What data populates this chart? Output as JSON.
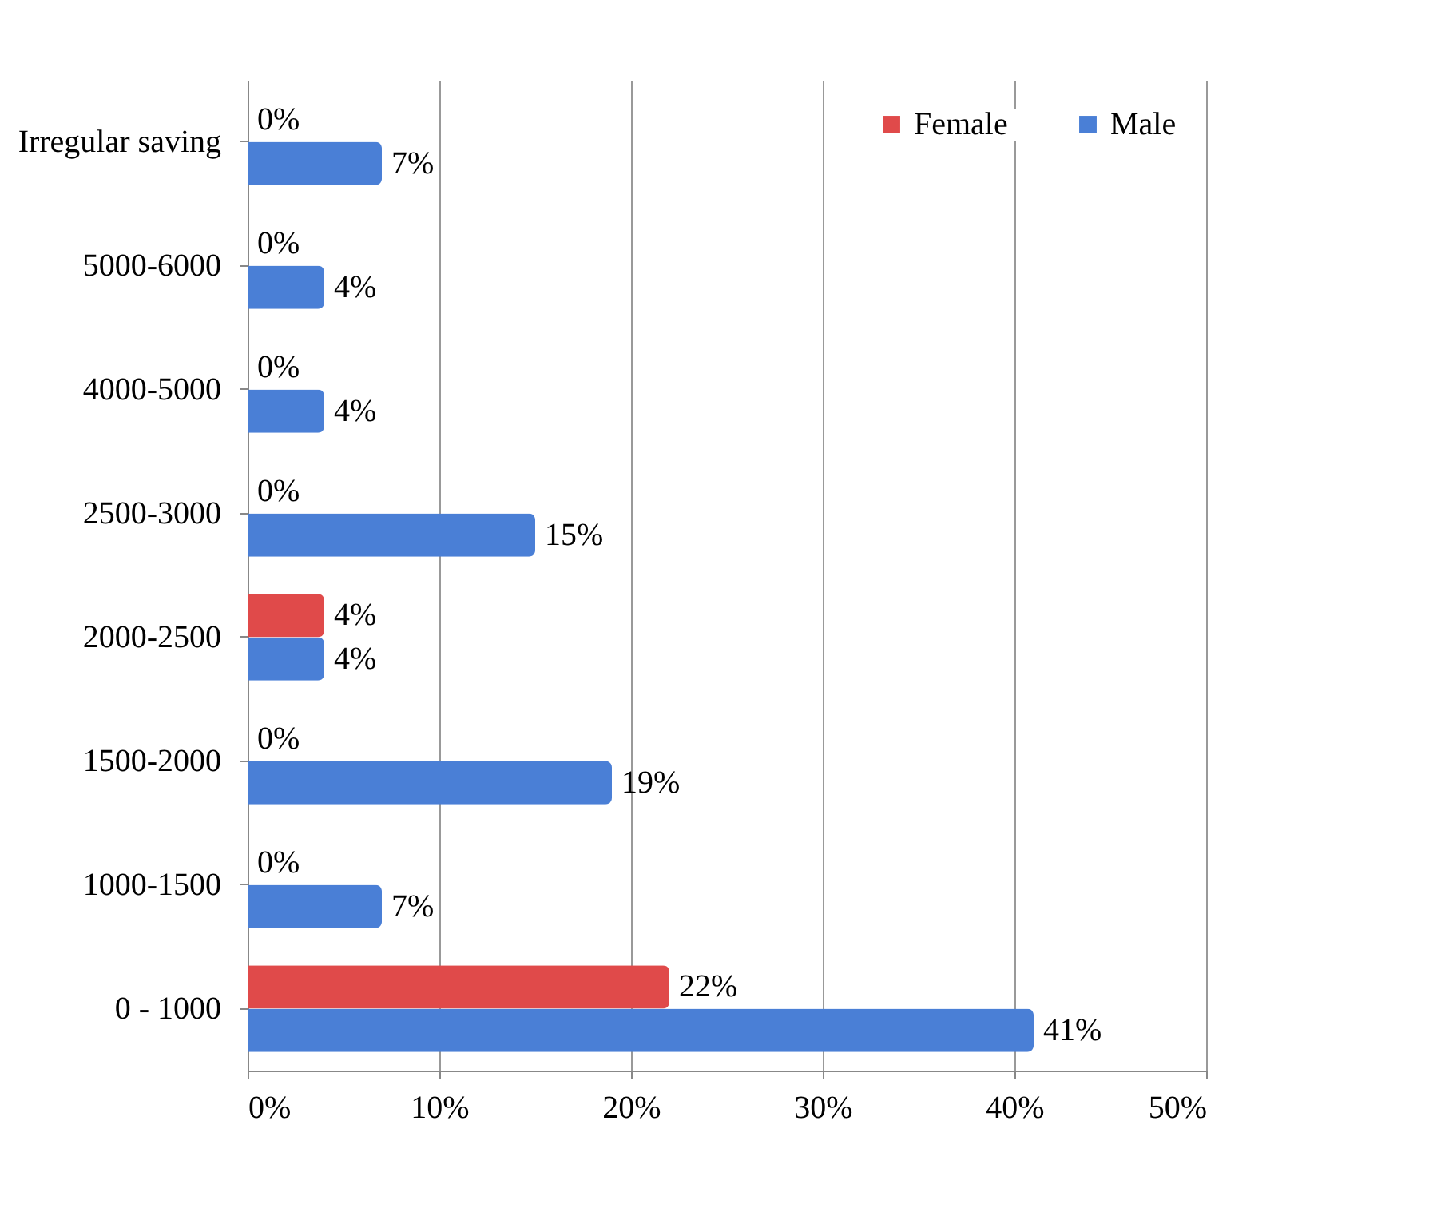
{
  "chart_data": {
    "type": "bar",
    "orientation": "horizontal",
    "categories": [
      "Irregular saving",
      "5000-6000",
      "4000-5000",
      "2500-3000",
      "2000-2500",
      "1500-2000",
      "1000-1500",
      "0 - 1000"
    ],
    "series": [
      {
        "name": "Female",
        "color": "#e04a4a",
        "values": [
          0,
          0,
          0,
          0,
          4,
          0,
          0,
          22
        ],
        "value_labels": [
          "0%",
          "0%",
          "0%",
          "0%",
          "4%",
          "0%",
          "0%",
          "22%"
        ]
      },
      {
        "name": "Male",
        "color": "#4a7fd6",
        "values": [
          7,
          4,
          4,
          15,
          4,
          19,
          7,
          41
        ],
        "value_labels": [
          "7%",
          "4%",
          "4%",
          "15%",
          "4%",
          "19%",
          "7%",
          "41%"
        ]
      }
    ],
    "xlim": [
      0,
      50
    ],
    "xticks": [
      {
        "value": 0,
        "label": "0%"
      },
      {
        "value": 10,
        "label": "10%"
      },
      {
        "value": 20,
        "label": "20%"
      },
      {
        "value": 30,
        "label": "30%"
      },
      {
        "value": 40,
        "label": "40%"
      },
      {
        "value": 50,
        "label": "50%"
      }
    ],
    "grid": "x",
    "legend": "top right"
  }
}
